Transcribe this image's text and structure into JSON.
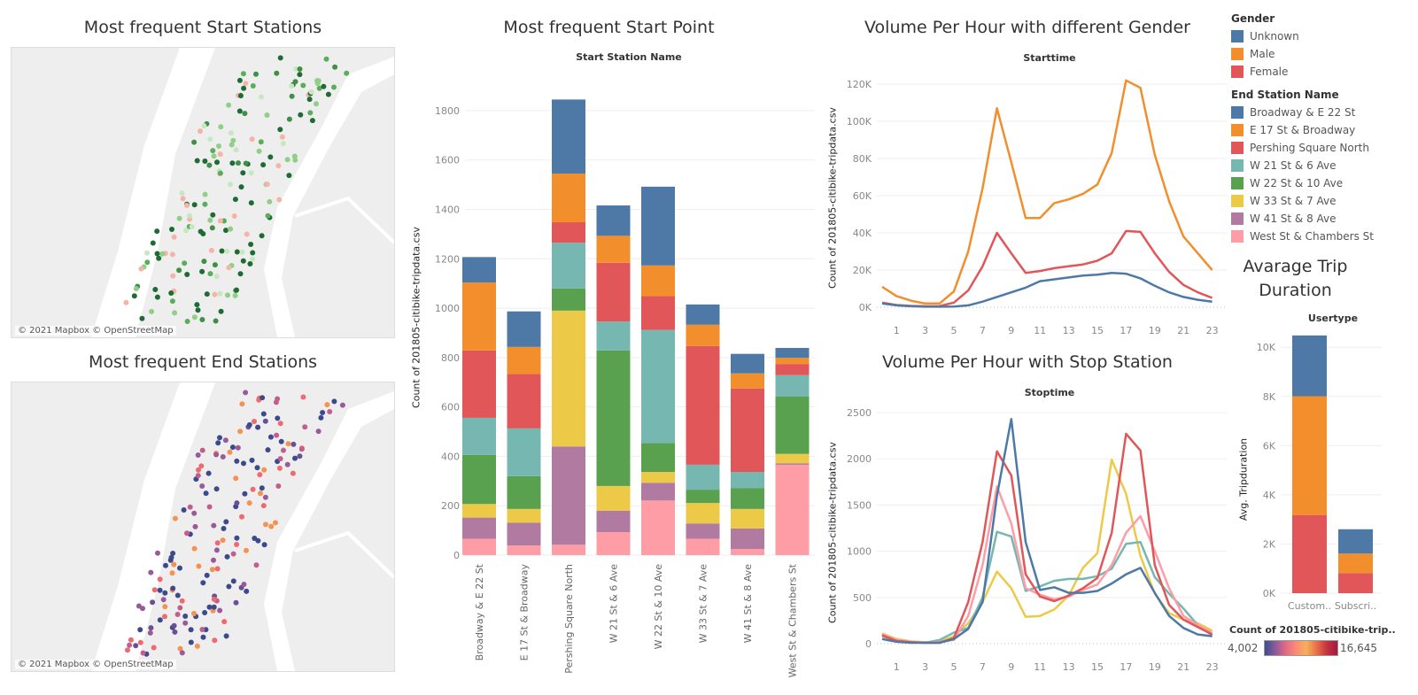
{
  "maps": [
    {
      "title": "Most frequent Start Stations",
      "credit": "© 2021 Mapbox © OpenStreetMap",
      "palette": [
        "#1f6b35",
        "#1f6b35",
        "#3f8f46",
        "#5aae5a",
        "#8fcf86",
        "#c6e8c0",
        "#f6b3a8"
      ]
    },
    {
      "title": "Most frequent End Stations",
      "credit": "© 2021 Mapbox © OpenStreetMap",
      "palette": [
        "#3c4a8c",
        "#3c4a8c",
        "#6a4f95",
        "#9a5a9a",
        "#c25e8e",
        "#ee6a70",
        "#f5924f"
      ]
    }
  ],
  "colors": {
    "Broadway & E 22 St": "#4e79a7",
    "E 17 St & Broadway": "#f28e2b",
    "Pershing Square North": "#e15759",
    "W 21 St & 6 Ave": "#76b7b2",
    "W 22 St & 10 Ave": "#59a14f",
    "W 33 St & 7 Ave": "#edc948",
    "W 41 St & 8 Ave": "#b07aa1",
    "West St & Chambers St": "#ff9da7",
    "Unknown": "#4e79a7",
    "Male": "#f28e2b",
    "Female": "#e15759"
  },
  "legend": {
    "gender_title": "Gender",
    "gender": [
      "Unknown",
      "Male",
      "Female"
    ],
    "end_title": "End Station Name",
    "end": [
      "Broadway & E 22 St",
      "E 17 St & Broadway",
      "Pershing Square North",
      "W 21 St & 6 Ave",
      "W 22 St & 10 Ave",
      "W 33 St & 7 Ave",
      "W 41 St & 8 Ave",
      "West St & Chambers St"
    ],
    "color_title": "Count of 201805-citibike-trip..",
    "color_min": "4,002",
    "color_max": "16,645"
  },
  "chart_data": [
    {
      "type": "bar",
      "stacked": true,
      "title": "Most frequent Start Point",
      "xlabel": "Start Station Name",
      "ylabel": "Count of 201805-citibike-tripdata.csv",
      "ylim": [
        0,
        1850
      ],
      "yticks": [
        0,
        200,
        400,
        600,
        800,
        1000,
        1200,
        1400,
        1600,
        1800
      ],
      "categories": [
        "Broadway & E 22 St",
        "E 17 St & Broadway",
        "Pershing Square North",
        "W 21 St & 6 Ave",
        "W 22 St & 10 Ave",
        "W 33 St & 7 Ave",
        "W 41 St & 8 Ave",
        "West St & Chambers St"
      ],
      "series": [
        {
          "name": "West St & Chambers St",
          "values": [
            66,
            39,
            42,
            93,
            221,
            66,
            25,
            366
          ]
        },
        {
          "name": "W 41 St & 8 Ave",
          "values": [
            86,
            92,
            398,
            87,
            72,
            62,
            83,
            6
          ]
        },
        {
          "name": "W 33 St & 7 Ave",
          "values": [
            55,
            56,
            550,
            100,
            44,
            83,
            79,
            38
          ]
        },
        {
          "name": "W 22 St & 10 Ave",
          "values": [
            199,
            133,
            90,
            549,
            117,
            54,
            85,
            233
          ]
        },
        {
          "name": "W 21 St & 6 Ave",
          "values": [
            150,
            193,
            185,
            117,
            458,
            101,
            65,
            86
          ]
        },
        {
          "name": "Pershing Square North",
          "values": [
            273,
            220,
            83,
            238,
            137,
            481,
            338,
            45
          ]
        },
        {
          "name": "E 17 St & Broadway",
          "values": [
            275,
            110,
            197,
            109,
            124,
            86,
            61,
            25
          ]
        },
        {
          "name": "Broadway & E 22 St",
          "values": [
            103,
            144,
            300,
            123,
            319,
            82,
            79,
            40
          ]
        }
      ]
    },
    {
      "type": "line",
      "title": "Volume Per Hour with different Gender",
      "xlabel": "Starttime",
      "ylabel": "Count of 201805-citibike-tripdata.csv",
      "ylim": [
        0,
        125000
      ],
      "yticks": [
        0,
        20000,
        40000,
        60000,
        80000,
        100000,
        120000
      ],
      "ytick_labels": [
        "0K",
        "20K",
        "40K",
        "60K",
        "80K",
        "100K",
        "120K"
      ],
      "x": [
        0,
        1,
        2,
        3,
        4,
        5,
        6,
        7,
        8,
        9,
        10,
        11,
        12,
        13,
        14,
        15,
        16,
        17,
        18,
        19,
        20,
        21,
        22,
        23
      ],
      "xticks": [
        1,
        3,
        5,
        7,
        9,
        11,
        13,
        15,
        17,
        19,
        21,
        23
      ],
      "series": [
        {
          "name": "Male",
          "values": [
            11000,
            6000,
            3500,
            2000,
            2000,
            8500,
            30000,
            64000,
            107000,
            78000,
            48000,
            48000,
            56000,
            58000,
            61000,
            66000,
            83000,
            122000,
            118000,
            82000,
            57000,
            38000,
            29000,
            20000
          ]
        },
        {
          "name": "Female",
          "values": [
            2500,
            1200,
            700,
            500,
            600,
            2500,
            9000,
            22000,
            40000,
            29000,
            18500,
            19500,
            21000,
            22000,
            23000,
            25000,
            29000,
            41000,
            40500,
            29000,
            19000,
            12000,
            8000,
            5000
          ]
        },
        {
          "name": "Unknown",
          "values": [
            2000,
            1000,
            500,
            300,
            300,
            400,
            1000,
            3000,
            5500,
            8000,
            10500,
            14000,
            15000,
            16000,
            17000,
            17500,
            18500,
            18000,
            15500,
            11500,
            8000,
            5500,
            4000,
            3000
          ]
        }
      ]
    },
    {
      "type": "line",
      "title": "Volume Per Hour with Stop Station",
      "xlabel": "Stoptime",
      "ylabel": "Count of 201805-citibike-tripdata.csv",
      "ylim": [
        0,
        2600
      ],
      "yticks": [
        0,
        500,
        1000,
        1500,
        2000,
        2500
      ],
      "ytick_labels": [
        "0",
        "500",
        "1000",
        "1500",
        "2000",
        "2500"
      ],
      "x": [
        0,
        1,
        2,
        3,
        4,
        5,
        6,
        7,
        8,
        9,
        10,
        11,
        12,
        13,
        14,
        15,
        16,
        17,
        18,
        19,
        20,
        21,
        22,
        23
      ],
      "xticks": [
        1,
        3,
        5,
        7,
        9,
        11,
        13,
        15,
        17,
        19,
        21,
        23
      ],
      "series": [
        {
          "name": "W 33 St & 7 Ave",
          "values": [
            110,
            50,
            25,
            15,
            20,
            80,
            220,
            450,
            780,
            600,
            290,
            300,
            370,
            520,
            820,
            980,
            1990,
            1620,
            950,
            540,
            330,
            260,
            220,
            140
          ]
        },
        {
          "name": "W 21 St & 6 Ave",
          "values": [
            80,
            30,
            15,
            10,
            40,
            120,
            170,
            500,
            1210,
            1160,
            570,
            620,
            680,
            700,
            700,
            730,
            810,
            1080,
            1100,
            720,
            540,
            380,
            200,
            90
          ]
        },
        {
          "name": "West St & Chambers St",
          "values": [
            100,
            40,
            20,
            10,
            20,
            40,
            300,
            850,
            1700,
            1300,
            600,
            530,
            480,
            510,
            580,
            640,
            850,
            1200,
            1380,
            1000,
            600,
            300,
            200,
            120
          ]
        },
        {
          "name": "Pershing Square North",
          "values": [
            90,
            30,
            15,
            10,
            10,
            60,
            450,
            1100,
            2080,
            1820,
            750,
            510,
            460,
            520,
            600,
            710,
            1200,
            2270,
            2090,
            850,
            420,
            260,
            180,
            100
          ]
        },
        {
          "name": "Broadway & E 22 St",
          "values": [
            50,
            20,
            10,
            10,
            10,
            50,
            160,
            450,
            1600,
            2430,
            1100,
            580,
            610,
            550,
            550,
            570,
            650,
            750,
            820,
            550,
            300,
            170,
            100,
            80
          ]
        }
      ]
    },
    {
      "type": "bar",
      "stacked": true,
      "title": "Avarage Trip Duration",
      "xlabel": "Usertype",
      "ylabel": "Avg. Tripduration",
      "ylim": [
        0,
        10800
      ],
      "yticks": [
        0,
        2000,
        4000,
        6000,
        8000,
        10000
      ],
      "ytick_labels": [
        "0K",
        "2K",
        "4K",
        "6K",
        "8K",
        "10K"
      ],
      "categories": [
        "Custom..",
        "Subscri.."
      ],
      "series": [
        {
          "name": "Female",
          "values": [
            3180,
            820
          ]
        },
        {
          "name": "Male",
          "values": [
            4830,
            790
          ]
        },
        {
          "name": "Unknown",
          "values": [
            2470,
            990
          ]
        }
      ]
    }
  ]
}
